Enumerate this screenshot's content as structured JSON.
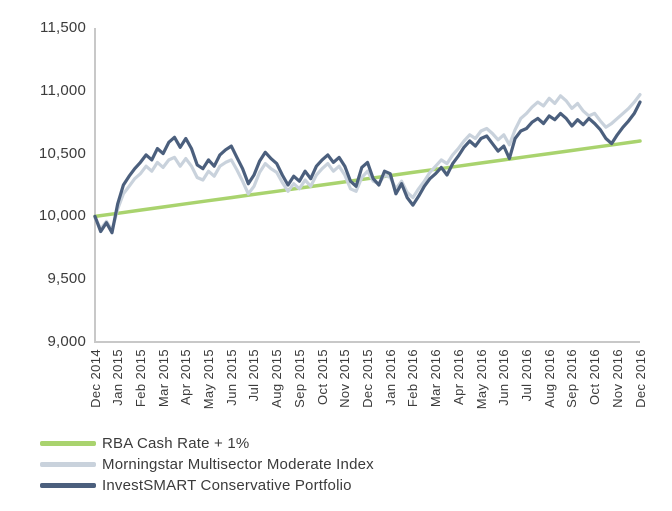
{
  "chart_data": {
    "type": "line",
    "title": "",
    "grid": false,
    "legend_position": "bottom-left",
    "axis_color": "#c8c8c8",
    "text_color": "#3b3b3b",
    "ylim": [
      9000,
      11500
    ],
    "y_ticks": [
      11500,
      11000,
      10500,
      10000,
      9500,
      9000
    ],
    "y_tick_labels": [
      "11,500",
      "11,000",
      "10,500",
      "10,000",
      "9,500",
      "9,000"
    ],
    "x_tick_labels": [
      "Dec 2014",
      "Jan 2015",
      "Feb 2015",
      "Mar 2015",
      "Apr 2015",
      "May 2015",
      "Jun 2015",
      "Jul 2015",
      "Aug 2015",
      "Sep 2015",
      "Oct 2015",
      "Nov 2015",
      "Dec 2015",
      "Jan 2016",
      "Feb 2016",
      "Mar 2016",
      "Apr 2016",
      "May 2016",
      "Jun 2016",
      "Jul 2016",
      "Aug 2016",
      "Sep 2016",
      "Oct 2016",
      "Nov 2016",
      "Dec 2016"
    ],
    "x_months_total": 24,
    "series": [
      {
        "name": "RBA Cash Rate + 1%",
        "color": "#a9d36e",
        "stroke_width": 3.5,
        "x_step_months": 1,
        "values": [
          10000,
          10025,
          10050,
          10075,
          10100,
          10125,
          10150,
          10175,
          10200,
          10225,
          10250,
          10275,
          10300,
          10325,
          10350,
          10375,
          10400,
          10425,
          10450,
          10475,
          10500,
          10525,
          10550,
          10575,
          10600
        ]
      },
      {
        "name": "Morningstar Multisector Moderate Index",
        "color": "#c9d2dc",
        "stroke_width": 3.2,
        "x_step_months": 0.25,
        "values": [
          9990,
          9900,
          9960,
          9890,
          10060,
          10180,
          10240,
          10300,
          10340,
          10400,
          10360,
          10430,
          10390,
          10450,
          10470,
          10400,
          10460,
          10400,
          10310,
          10290,
          10360,
          10320,
          10400,
          10430,
          10450,
          10370,
          10280,
          10180,
          10240,
          10350,
          10420,
          10380,
          10350,
          10270,
          10200,
          10260,
          10220,
          10290,
          10240,
          10330,
          10380,
          10420,
          10360,
          10400,
          10330,
          10220,
          10200,
          10310,
          10360,
          10280,
          10260,
          10330,
          10310,
          10220,
          10280,
          10190,
          10150,
          10220,
          10280,
          10350,
          10400,
          10450,
          10420,
          10490,
          10540,
          10600,
          10650,
          10620,
          10680,
          10700,
          10660,
          10610,
          10650,
          10570,
          10690,
          10780,
          10820,
          10870,
          10910,
          10880,
          10940,
          10900,
          10960,
          10920,
          10860,
          10900,
          10840,
          10800,
          10820,
          10760,
          10710,
          10740,
          10780,
          10820,
          10860,
          10910,
          10970
        ]
      },
      {
        "name": "InvestSMART Conservative Portfolio",
        "color": "#4b5f7d",
        "stroke_width": 3.2,
        "x_step_months": 0.25,
        "values": [
          10000,
          9880,
          9950,
          9870,
          10100,
          10250,
          10320,
          10380,
          10430,
          10490,
          10450,
          10540,
          10500,
          10590,
          10630,
          10550,
          10620,
          10540,
          10410,
          10380,
          10450,
          10400,
          10490,
          10530,
          10560,
          10470,
          10380,
          10260,
          10330,
          10440,
          10510,
          10460,
          10420,
          10330,
          10250,
          10320,
          10280,
          10360,
          10300,
          10400,
          10450,
          10490,
          10430,
          10470,
          10400,
          10280,
          10240,
          10390,
          10430,
          10300,
          10250,
          10360,
          10340,
          10180,
          10260,
          10150,
          10090,
          10160,
          10240,
          10300,
          10340,
          10390,
          10330,
          10420,
          10480,
          10550,
          10600,
          10560,
          10620,
          10640,
          10580,
          10520,
          10560,
          10460,
          10620,
          10680,
          10700,
          10750,
          10780,
          10740,
          10800,
          10770,
          10820,
          10780,
          10720,
          10770,
          10730,
          10780,
          10740,
          10690,
          10620,
          10580,
          10650,
          10710,
          10760,
          10820,
          10910
        ]
      }
    ]
  }
}
